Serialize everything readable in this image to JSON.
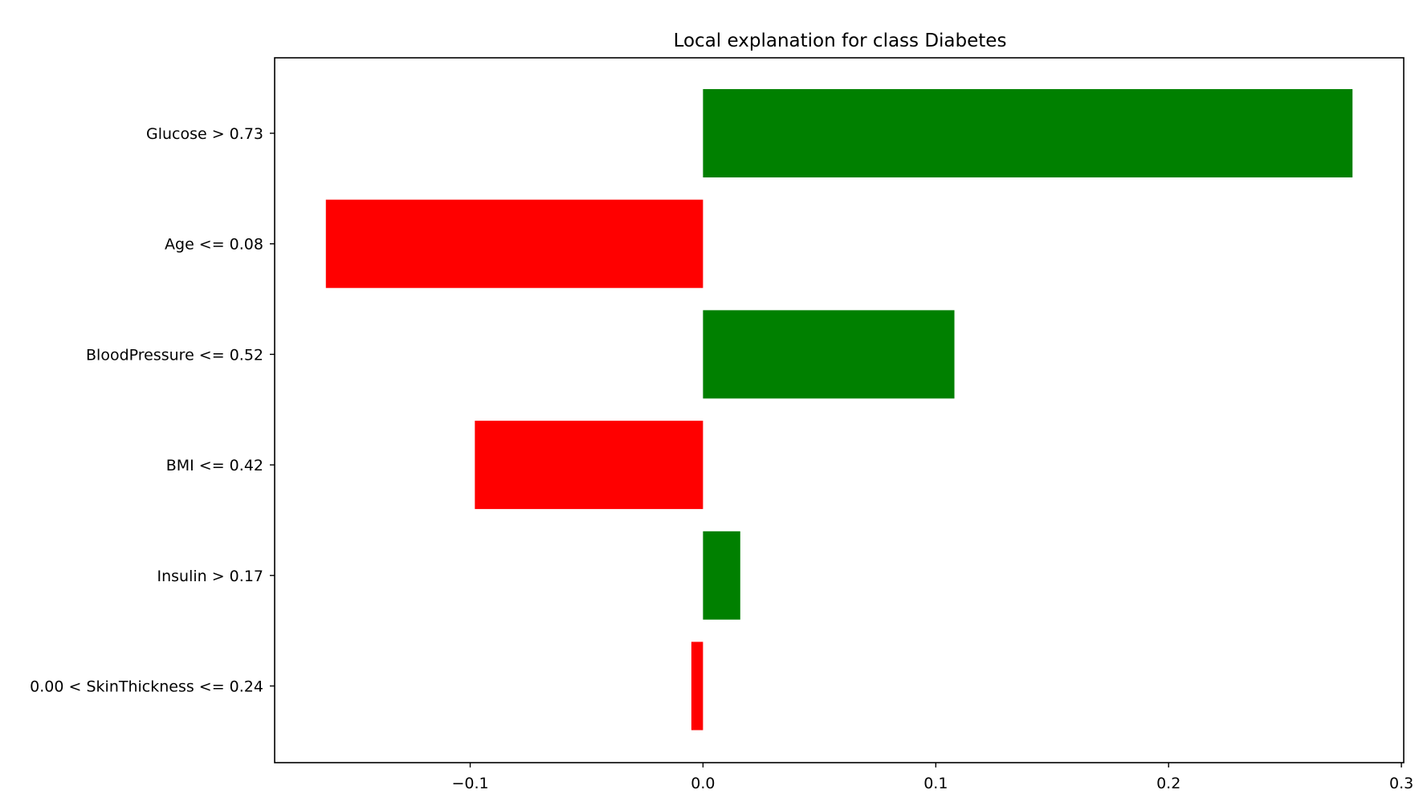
{
  "chart_data": {
    "type": "bar",
    "orientation": "horizontal",
    "title": "Local explanation for class Diabetes",
    "xlabel": "",
    "ylabel": "",
    "categories": [
      "Glucose > 0.73",
      "Age <= 0.08",
      "BloodPressure <= 0.52",
      "BMI <= 0.42",
      "Insulin > 0.17",
      "0.00 < SkinThickness <= 0.24"
    ],
    "values": [
      0.279,
      -0.162,
      0.108,
      -0.098,
      0.016,
      -0.005
    ],
    "xlim": [
      -0.184,
      0.301
    ],
    "xticks": [
      -0.1,
      0.0,
      0.1,
      0.2,
      0.3
    ],
    "xtick_labels": [
      "−0.1",
      "0.0",
      "0.1",
      "0.2",
      "0.3"
    ],
    "colors": {
      "positive": "#008000",
      "negative": "#ff0000"
    },
    "grid": false,
    "legend": "none"
  }
}
